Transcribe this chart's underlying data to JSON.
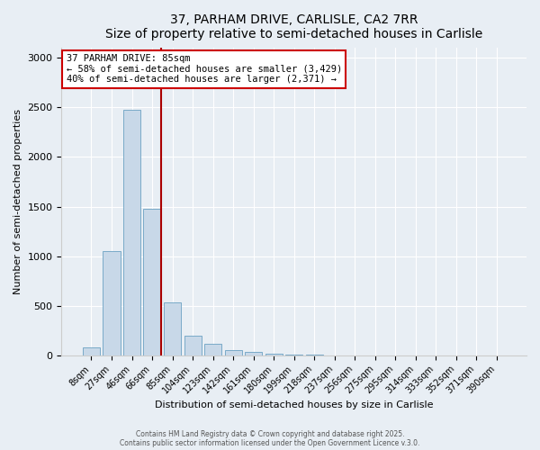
{
  "title1": "37, PARHAM DRIVE, CARLISLE, CA2 7RR",
  "title2": "Size of property relative to semi-detached houses in Carlisle",
  "xlabel": "Distribution of semi-detached houses by size in Carlisle",
  "ylabel": "Number of semi-detached properties",
  "bins": [
    "8sqm",
    "27sqm",
    "46sqm",
    "66sqm",
    "85sqm",
    "104sqm",
    "123sqm",
    "142sqm",
    "161sqm",
    "180sqm",
    "199sqm",
    "218sqm",
    "237sqm",
    "256sqm",
    "275sqm",
    "295sqm",
    "314sqm",
    "333sqm",
    "352sqm",
    "371sqm",
    "390sqm"
  ],
  "values": [
    75,
    1050,
    2480,
    1480,
    530,
    200,
    120,
    55,
    30,
    20,
    5,
    3,
    2,
    1,
    1,
    0,
    0,
    0,
    0,
    0,
    0
  ],
  "property_bin_index": 3,
  "property_sqm": 85,
  "pct_smaller": 58,
  "n_smaller": 3429,
  "pct_larger": 40,
  "n_larger": 2371,
  "bar_color": "#c8d8e8",
  "bar_edge_color": "#7aaac8",
  "highlight_line_color": "#aa0000",
  "box_edge_color": "#cc0000",
  "annotation_text_line1": "37 PARHAM DRIVE: 85sqm",
  "annotation_text_line2": "← 58% of semi-detached houses are smaller (3,429)",
  "annotation_text_line3": "40% of semi-detached houses are larger (2,371) →",
  "ylim": [
    0,
    3100
  ],
  "yticks": [
    0,
    500,
    1000,
    1500,
    2000,
    2500,
    3000
  ],
  "footer1": "Contains HM Land Registry data © Crown copyright and database right 2025.",
  "footer2": "Contains public sector information licensed under the Open Government Licence v.3.0.",
  "bg_color": "#e8eef4",
  "plot_bg_color": "#e8eef4"
}
